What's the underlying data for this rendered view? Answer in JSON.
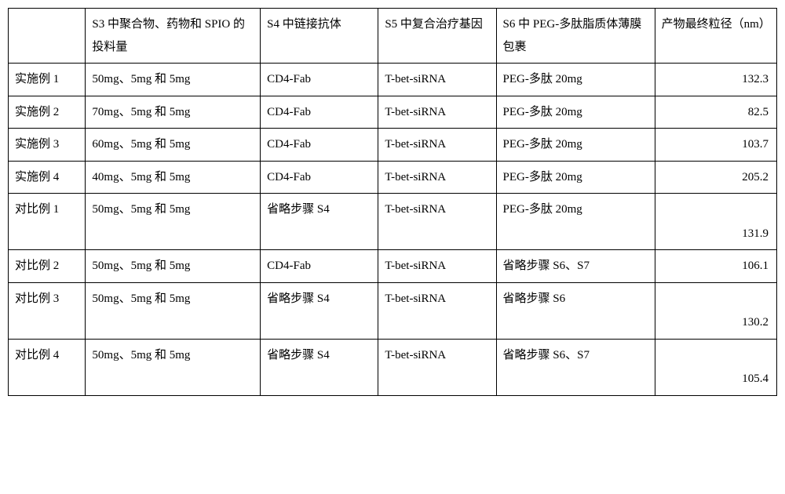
{
  "table": {
    "headers": {
      "col0": "",
      "col1": "S3 中聚合物、药物和 SPIO 的投料量",
      "col2": "S4 中链接抗体",
      "col3": "S5 中复合治疗基因",
      "col4": "S6 中 PEG-多肽脂质体薄膜包裹",
      "col5": "产物最终粒径（nm）"
    },
    "rows": [
      {
        "label": "实施例 1",
        "s3": "50mg、5mg 和 5mg",
        "s4": "CD4-Fab",
        "s5": "T-bet-siRNA",
        "s6": "PEG-多肽 20mg",
        "result": "132.3",
        "tall": false
      },
      {
        "label": "实施例 2",
        "s3": "70mg、5mg 和 5mg",
        "s4": "CD4-Fab",
        "s5": "T-bet-siRNA",
        "s6": "PEG-多肽 20mg",
        "result": "82.5",
        "tall": false
      },
      {
        "label": "实施例 3",
        "s3": "60mg、5mg 和 5mg",
        "s4": "CD4-Fab",
        "s5": "T-bet-siRNA",
        "s6": "PEG-多肽 20mg",
        "result": "103.7",
        "tall": false
      },
      {
        "label": "实施例 4",
        "s3": "40mg、5mg 和 5mg",
        "s4": "CD4-Fab",
        "s5": "T-bet-siRNA",
        "s6": "PEG-多肽 20mg",
        "result": "205.2",
        "tall": false
      },
      {
        "label": "对比例 1",
        "s3": "50mg、5mg 和 5mg",
        "s4": "省略步骤 S4",
        "s5": "T-bet-siRNA",
        "s6": "PEG-多肽 20mg",
        "result": "131.9",
        "tall": true
      },
      {
        "label": "对比例 2",
        "s3": "50mg、5mg 和 5mg",
        "s4": "CD4-Fab",
        "s5": "T-bet-siRNA",
        "s6": "省略步骤 S6、S7",
        "result": "106.1",
        "tall": false
      },
      {
        "label": "对比例 3",
        "s3": "50mg、5mg 和 5mg",
        "s4": "省略步骤 S4",
        "s5": "T-bet-siRNA",
        "s6": "省略步骤 S6",
        "result": "130.2",
        "tall": true
      },
      {
        "label": "对比例 4",
        "s3": "50mg、5mg 和 5mg",
        "s4": "省略步骤 S4",
        "s5": "T-bet-siRNA",
        "s6": "省略步骤 S6、S7",
        "result": "105.4",
        "tall": true
      }
    ]
  }
}
